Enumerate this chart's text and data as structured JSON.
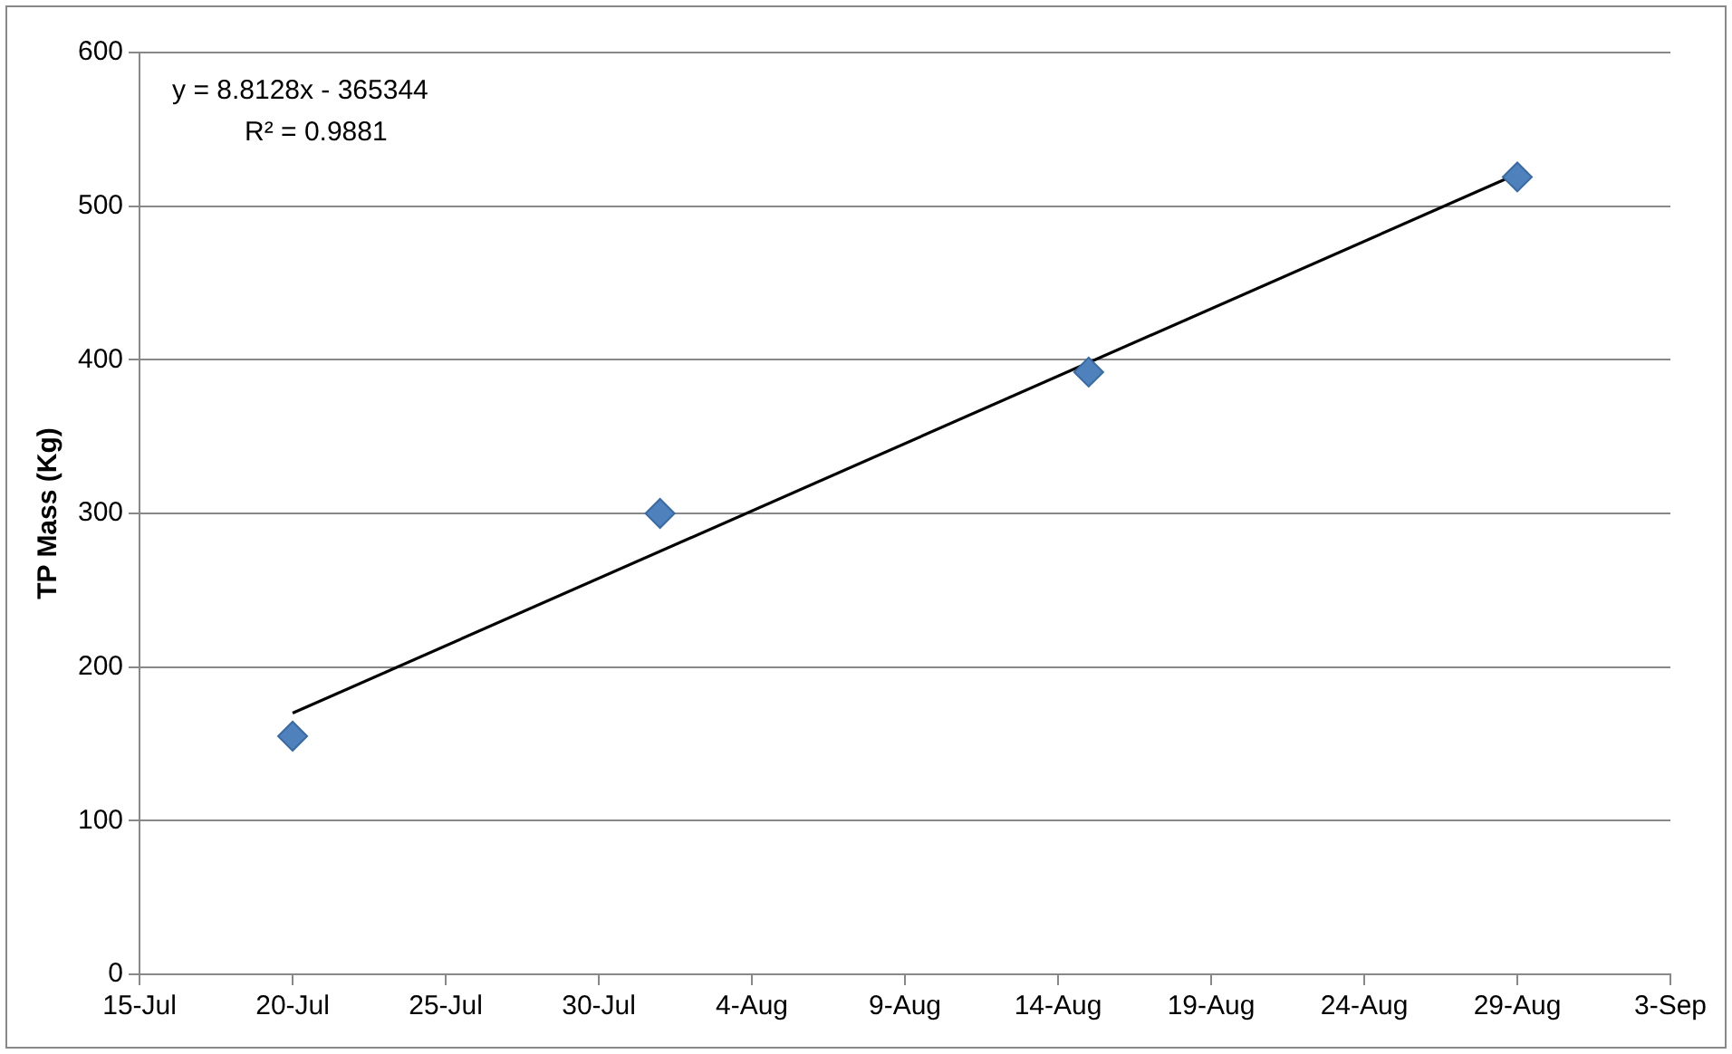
{
  "chart_data": {
    "type": "scatter",
    "ylabel": "TP Mass (Kg)",
    "x": [
      "--07-20",
      "--08-01",
      "--08-15",
      "--08-29"
    ],
    "series": [
      {
        "color": "#4f81bd",
        "marker": "diamond",
        "values": [
          155,
          300,
          392,
          519
        ]
      },
      {
        "type": "line",
        "color": "#000000",
        "marker": "none",
        "x": [
          "--07-20",
          "--08-29"
        ],
        "values": [
          170,
          521
        ]
      }
    ],
    "xlim": [
      "--07-15",
      "--09-03"
    ],
    "xticks": [
      {
        "value": "--07-15",
        "label": "15-Jul"
      },
      {
        "value": "--07-20",
        "label": "20-Jul"
      },
      {
        "value": "--07-25",
        "label": "25-Jul"
      },
      {
        "value": "--07-30",
        "label": "30-Jul"
      },
      {
        "value": "--08-04",
        "label": "4-Aug"
      },
      {
        "value": "--08-09",
        "label": "9-Aug"
      },
      {
        "value": "--08-14",
        "label": "14-Aug"
      },
      {
        "value": "--08-19",
        "label": "19-Aug"
      },
      {
        "value": "--08-24",
        "label": "24-Aug"
      },
      {
        "value": "--08-29",
        "label": "29-Aug"
      },
      {
        "value": "--09-03",
        "label": "3-Sep"
      }
    ],
    "ylim": [
      0,
      600
    ],
    "yticks": [
      0,
      100,
      200,
      300,
      400,
      500,
      600
    ],
    "grid": "y",
    "legend": false,
    "annotations": [
      "y = 8.8128x - 365344",
      "R² = 0.9881"
    ]
  }
}
